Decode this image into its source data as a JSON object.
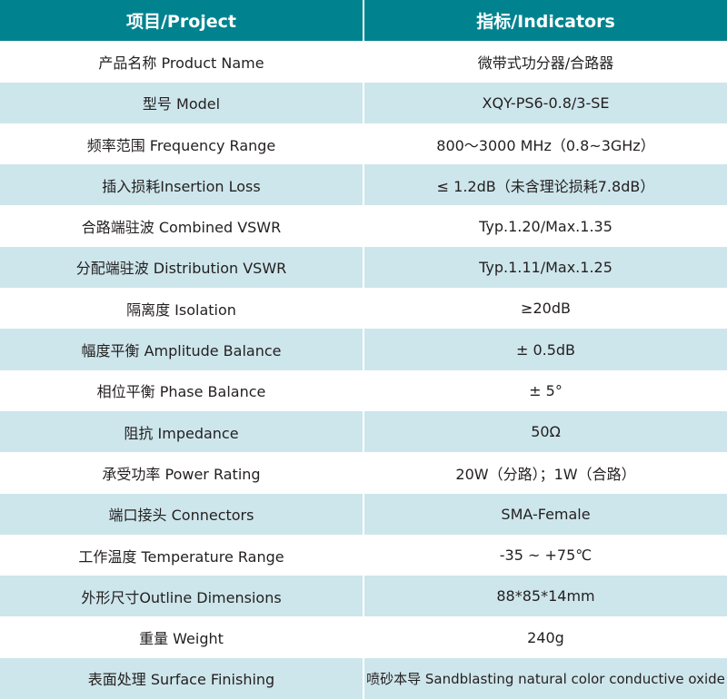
{
  "colors": {
    "header_bg": "#00838f",
    "alt_row_bg": "#cde6eb"
  },
  "header": {
    "project": "项目/Project",
    "indicators": "指标/Indicators"
  },
  "rows": [
    {
      "project": "产品名称 Product Name",
      "indicator": "微带式功分器/合路器"
    },
    {
      "project": "型号 Model",
      "indicator": "XQY-PS6-0.8/3-SE"
    },
    {
      "project": "频率范围 Frequency Range",
      "indicator": "800～3000 MHz（0.8~3GHz）"
    },
    {
      "project": "插入损耗Insertion Loss",
      "indicator": "≤ 1.2dB（未含理论损耗7.8dB）"
    },
    {
      "project": "合路端驻波 Combined VSWR",
      "indicator": "Typ.1.20/Max.1.35"
    },
    {
      "project": "分配端驻波 Distribution VSWR",
      "indicator": "Typ.1.11/Max.1.25"
    },
    {
      "project": "隔离度 Isolation",
      "indicator": "≥20dB"
    },
    {
      "project": "幅度平衡 Amplitude Balance",
      "indicator": "± 0.5dB"
    },
    {
      "project": "相位平衡 Phase Balance",
      "indicator": "± 5°"
    },
    {
      "project": "阻抗 Impedance",
      "indicator": "50Ω"
    },
    {
      "project": "承受功率 Power Rating",
      "indicator": "20W（分路）；1W（合路）"
    },
    {
      "project": "端口接头 Connectors",
      "indicator": "SMA-Female"
    },
    {
      "project": "工作温度 Temperature Range",
      "indicator": "-35 ~ +75℃"
    },
    {
      "project": "外形尺寸Outline Dimensions",
      "indicator": "88*85*14mm"
    },
    {
      "project": "重量 Weight",
      "indicator": "240g"
    },
    {
      "project": "表面处理 Surface Finishing",
      "indicator": "喷砂本导 Sandblasting natural color conductive oxide"
    }
  ]
}
